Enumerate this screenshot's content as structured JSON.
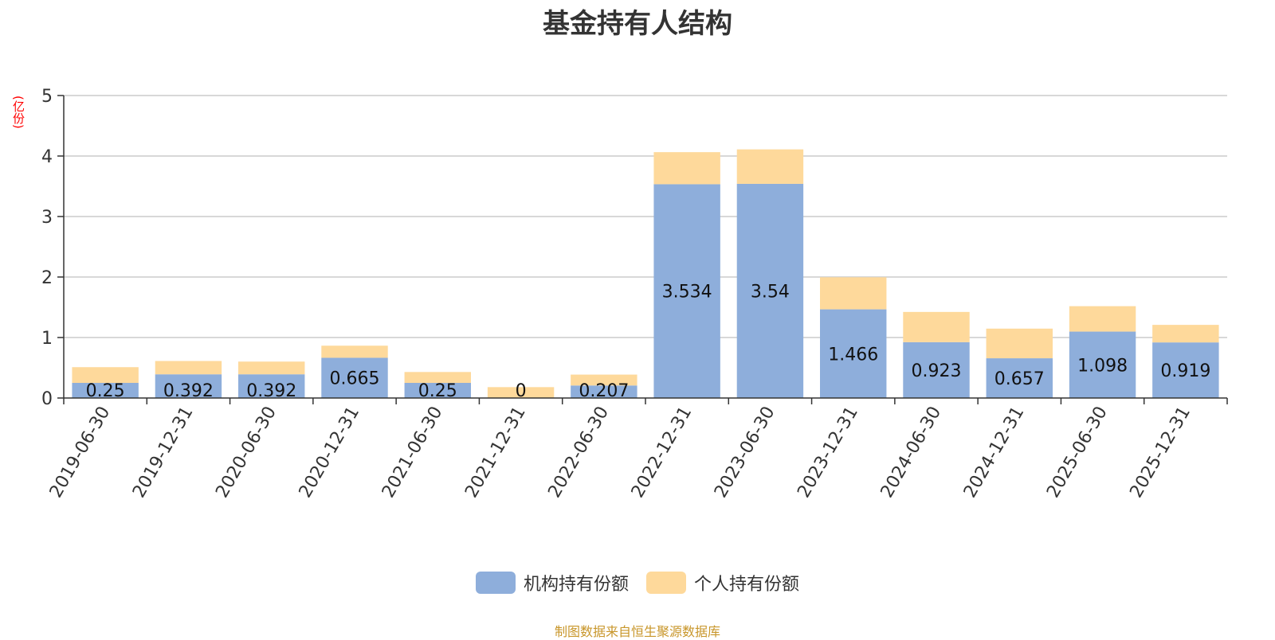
{
  "chart_data": {
    "type": "bar",
    "stacked": true,
    "title": "基金持有人结构",
    "ylabel": "(亿份)",
    "ylim": [
      0,
      5
    ],
    "yticks": [
      0,
      1,
      2,
      3,
      4,
      5
    ],
    "grid": true,
    "legend_position": "bottom",
    "categories": [
      "2019-06-30",
      "2019-12-31",
      "2020-06-30",
      "2020-12-31",
      "2021-06-30",
      "2021-12-31",
      "2022-06-30",
      "2022-12-31",
      "2023-06-30",
      "2023-12-31",
      "2024-06-30",
      "2024-12-31",
      "2025-06-30",
      "2025-12-31"
    ],
    "series": [
      {
        "name": "机构持有份额",
        "color": "#8eaedb",
        "values": [
          0.25,
          0.392,
          0.392,
          0.665,
          0.25,
          0,
          0.207,
          3.534,
          3.54,
          1.466,
          0.923,
          0.657,
          1.098,
          0.919
        ],
        "labels": [
          "0.25",
          "0.392",
          "0.392",
          "0.665",
          "0.25",
          "0",
          "0.207",
          "3.534",
          "3.54",
          "1.466",
          "0.923",
          "0.657",
          "1.098",
          "0.919"
        ]
      },
      {
        "name": "个人持有份额",
        "color": "#fed99b",
        "values": [
          0.26,
          0.22,
          0.21,
          0.2,
          0.18,
          0.18,
          0.18,
          0.53,
          0.57,
          0.53,
          0.5,
          0.49,
          0.42,
          0.29
        ]
      }
    ],
    "source": "制图数据来自恒生聚源数据库"
  }
}
